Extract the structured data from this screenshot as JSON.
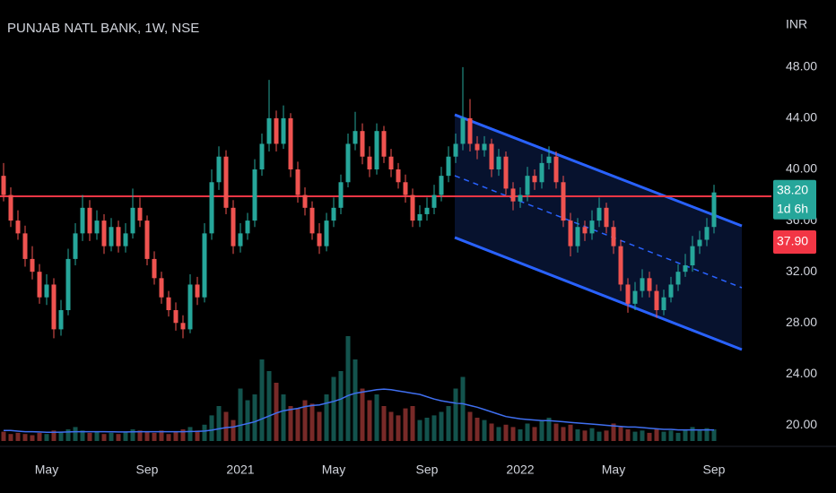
{
  "chart_data": {
    "type": "candlestick",
    "title": "PUNJAB NATL BANK, 1W, NSE",
    "y_axis_label": "INR",
    "up_color": "#26a69a",
    "down_color": "#ef5350",
    "volume_ma_color": "#3f6ff0",
    "hline_color": "#f23645",
    "ylim": [
      18,
      51
    ],
    "yticks": [
      {
        "value": 20,
        "label": "20.00"
      },
      {
        "value": 24,
        "label": "24.00"
      },
      {
        "value": 28,
        "label": "28.00"
      },
      {
        "value": 32,
        "label": "32.00"
      },
      {
        "value": 36,
        "label": "36.00"
      },
      {
        "value": 40,
        "label": "40.00"
      },
      {
        "value": 44,
        "label": "44.00"
      },
      {
        "value": 48,
        "label": "48.00"
      }
    ],
    "last_price": 38.2,
    "last_price_label": "38.20",
    "countdown": "1d 6h",
    "hline": 37.9,
    "hline_label": "37.90",
    "categories": [
      null,
      null,
      null,
      null,
      null,
      null,
      "May",
      null,
      null,
      null,
      null,
      null,
      null,
      null,
      null,
      null,
      null,
      null,
      null,
      null,
      "Sep",
      null,
      null,
      null,
      null,
      null,
      null,
      null,
      null,
      null,
      null,
      null,
      null,
      "2021",
      null,
      null,
      null,
      null,
      null,
      null,
      null,
      null,
      null,
      null,
      null,
      null,
      "May",
      null,
      null,
      null,
      null,
      null,
      null,
      null,
      null,
      null,
      null,
      null,
      null,
      "Sep",
      null,
      null,
      null,
      null,
      null,
      null,
      null,
      null,
      null,
      null,
      null,
      null,
      "2022",
      null,
      null,
      null,
      null,
      null,
      null,
      null,
      null,
      null,
      null,
      null,
      null,
      "May",
      null,
      null,
      null,
      null,
      null,
      null,
      null,
      null,
      null,
      null,
      null,
      null,
      null,
      "Sep"
    ],
    "ohlc": [
      [
        39.5,
        40.5,
        37.5,
        38
      ],
      [
        38,
        38.6,
        35.5,
        36
      ],
      [
        36,
        36.8,
        34.5,
        35
      ],
      [
        35,
        35.6,
        32.4,
        33
      ],
      [
        33,
        34,
        31.4,
        32
      ],
      [
        32,
        32.6,
        29.5,
        30
      ],
      [
        30,
        31.8,
        29.4,
        31
      ],
      [
        31,
        31.5,
        26.8,
        27.5
      ],
      [
        27.5,
        29.8,
        27,
        29
      ],
      [
        29,
        33.8,
        28.6,
        33
      ],
      [
        33,
        35.8,
        32.5,
        35
      ],
      [
        35,
        38,
        34.4,
        37
      ],
      [
        37,
        37.6,
        34.4,
        35
      ],
      [
        35,
        36.8,
        34.5,
        36
      ],
      [
        36,
        36.5,
        33.4,
        34
      ],
      [
        34,
        36.2,
        33.6,
        35.5
      ],
      [
        35.5,
        36,
        33.5,
        34
      ],
      [
        34,
        35.8,
        33.5,
        35
      ],
      [
        35,
        38.5,
        34.6,
        37
      ],
      [
        37,
        37.8,
        35.5,
        36
      ],
      [
        36,
        36.4,
        32.5,
        33
      ],
      [
        33,
        33.6,
        31,
        31.5
      ],
      [
        31.5,
        32,
        29.5,
        30
      ],
      [
        30,
        30.5,
        28.5,
        29
      ],
      [
        29,
        29.6,
        27.4,
        28
      ],
      [
        28,
        28.6,
        26.8,
        27.5
      ],
      [
        27.5,
        31.8,
        27.2,
        31
      ],
      [
        31,
        31.6,
        29.4,
        30
      ],
      [
        30,
        35.8,
        29.6,
        35
      ],
      [
        35,
        40,
        34.5,
        39
      ],
      [
        39,
        41.8,
        38.4,
        41
      ],
      [
        41,
        41.5,
        36.5,
        37
      ],
      [
        37,
        37.6,
        33.4,
        34
      ],
      [
        34,
        35.8,
        33.5,
        35
      ],
      [
        35,
        36.6,
        34.5,
        36
      ],
      [
        36,
        40.8,
        35.5,
        40
      ],
      [
        40,
        42.8,
        39.5,
        42
      ],
      [
        42,
        47,
        41.4,
        44
      ],
      [
        44,
        44.6,
        41.4,
        42
      ],
      [
        42,
        45,
        41.6,
        44
      ],
      [
        44,
        44.4,
        39.4,
        40
      ],
      [
        40,
        40.6,
        37.4,
        38
      ],
      [
        38,
        38.6,
        36.4,
        37
      ],
      [
        37,
        37.5,
        34.5,
        35
      ],
      [
        35,
        35.8,
        33.4,
        34
      ],
      [
        34,
        36.6,
        33.6,
        36
      ],
      [
        36,
        37.8,
        35.5,
        37
      ],
      [
        37,
        39.6,
        36.5,
        39
      ],
      [
        39,
        42.8,
        38.6,
        42
      ],
      [
        42,
        44.5,
        41.5,
        43
      ],
      [
        43,
        43.6,
        40.4,
        41
      ],
      [
        41,
        41.8,
        39.4,
        40
      ],
      [
        40,
        43.6,
        39.6,
        43
      ],
      [
        43,
        43.4,
        40.5,
        41
      ],
      [
        41,
        41.6,
        39.4,
        40
      ],
      [
        40,
        40.5,
        38.5,
        39
      ],
      [
        39,
        39.6,
        37.4,
        38
      ],
      [
        38,
        38.5,
        35.5,
        36
      ],
      [
        36,
        37.2,
        35.5,
        36.5
      ],
      [
        36.5,
        37.8,
        36,
        37
      ],
      [
        37,
        38.8,
        36.5,
        38
      ],
      [
        38,
        40.2,
        37.5,
        39.5
      ],
      [
        39.5,
        41.8,
        39,
        41
      ],
      [
        41,
        42.8,
        40.5,
        42
      ],
      [
        42,
        48,
        41.5,
        44
      ],
      [
        44,
        45.5,
        41.4,
        42
      ],
      [
        42,
        42.6,
        40.8,
        41.5
      ],
      [
        41.5,
        42.6,
        41,
        42
      ],
      [
        42,
        42.4,
        39.4,
        40
      ],
      [
        40,
        41.6,
        39.5,
        41
      ],
      [
        41,
        41.4,
        38,
        38.5
      ],
      [
        38.5,
        39,
        36.8,
        37.5
      ],
      [
        37.5,
        38.6,
        37,
        38
      ],
      [
        38,
        40.2,
        37.5,
        39.5
      ],
      [
        39.5,
        40,
        38.4,
        39
      ],
      [
        39,
        41.2,
        38.5,
        40.5
      ],
      [
        40.5,
        41.8,
        40,
        41
      ],
      [
        41,
        41.4,
        38.5,
        39
      ],
      [
        39,
        39.5,
        35.5,
        36
      ],
      [
        36,
        36.6,
        33.2,
        34
      ],
      [
        34,
        36.2,
        33.5,
        35.5
      ],
      [
        35.5,
        36,
        34.4,
        35
      ],
      [
        35,
        36.8,
        34.5,
        36
      ],
      [
        36,
        37.8,
        35.5,
        37
      ],
      [
        37,
        37.4,
        35,
        35.5
      ],
      [
        35.5,
        36,
        33.4,
        34
      ],
      [
        34,
        34.5,
        30.5,
        31
      ],
      [
        31,
        31.5,
        28.8,
        29.5
      ],
      [
        29.5,
        31.2,
        29,
        30.5
      ],
      [
        30.5,
        32.2,
        30,
        31.5
      ],
      [
        31.5,
        32,
        30,
        30.5
      ],
      [
        30.5,
        31,
        28.4,
        29
      ],
      [
        29,
        30.6,
        28.6,
        30
      ],
      [
        30,
        31.6,
        29.6,
        31
      ],
      [
        31,
        32.6,
        30.5,
        32
      ],
      [
        32,
        33.4,
        31.6,
        32.5
      ],
      [
        32.5,
        34.8,
        32,
        34
      ],
      [
        34,
        35.2,
        33.4,
        34.5
      ],
      [
        34.5,
        36.2,
        34,
        35.5
      ],
      [
        35.5,
        38.8,
        35,
        38.2
      ]
    ],
    "volume": [
      8,
      6,
      7,
      6,
      5,
      7,
      6,
      9,
      8,
      10,
      12,
      9,
      7,
      8,
      6,
      7,
      6,
      8,
      10,
      9,
      8,
      7,
      9,
      6,
      8,
      10,
      12,
      9,
      14,
      22,
      30,
      25,
      18,
      45,
      35,
      40,
      70,
      60,
      50,
      40,
      30,
      28,
      35,
      32,
      25,
      40,
      55,
      60,
      90,
      70,
      45,
      35,
      40,
      30,
      25,
      22,
      28,
      30,
      18,
      20,
      22,
      25,
      30,
      45,
      55,
      25,
      20,
      18,
      15,
      12,
      14,
      12,
      10,
      15,
      12,
      18,
      20,
      15,
      12,
      14,
      10,
      9,
      11,
      8,
      9,
      15,
      12,
      10,
      8,
      9,
      7,
      10,
      8,
      9,
      7,
      10,
      12,
      9,
      11,
      10
    ],
    "volume_ma": [
      9,
      9,
      8.5,
      8,
      8,
      7.8,
      7.5,
      7.5,
      7.6,
      7.8,
      8,
      8,
      8,
      8,
      8,
      7.9,
      7.8,
      7.8,
      7.9,
      8,
      8,
      8,
      8,
      8,
      8,
      8,
      8.2,
      8.3,
      8.6,
      9.3,
      10.5,
      11.5,
      12,
      13.5,
      15,
      16.5,
      19,
      21.5,
      24,
      26,
      27,
      28,
      29.5,
      30.5,
      31,
      32.5,
      34,
      36,
      39,
      41,
      42,
      43,
      44,
      44.5,
      44,
      43,
      42,
      41,
      40,
      38,
      36,
      34.5,
      33.5,
      32.5,
      32,
      30.5,
      29,
      27,
      25,
      23,
      21,
      20,
      19,
      18.5,
      18,
      17.5,
      17.5,
      17,
      16.5,
      16,
      15.5,
      15,
      14.5,
      14,
      13.5,
      13,
      12.5,
      12,
      12,
      11.5,
      11,
      10.5,
      10,
      10,
      9.5,
      9.5,
      9.5,
      9.5,
      9.5,
      9.5
    ]
  }
}
